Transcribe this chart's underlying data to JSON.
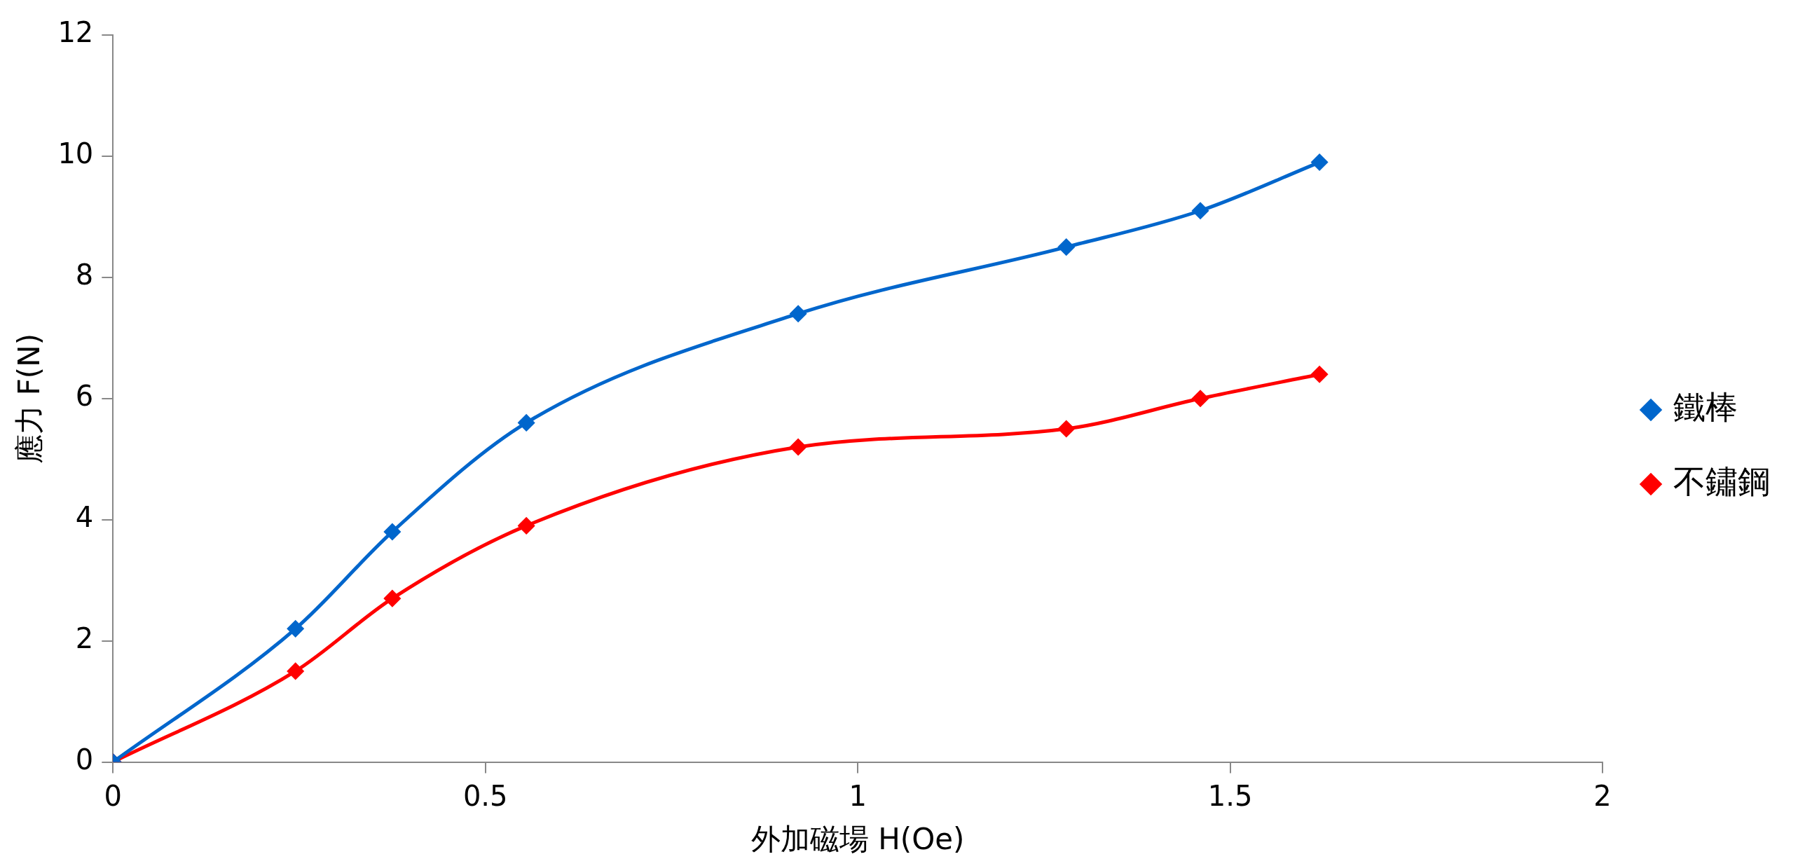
{
  "chart_data": {
    "type": "line",
    "xlabel": "外加磁場 H(Oe)",
    "ylabel": "應力 F(N)",
    "x": [
      0,
      0.245,
      0.375,
      0.555,
      0.92,
      1.28,
      1.46,
      1.62
    ],
    "series": [
      {
        "name": "鐵棒",
        "color": "#0066cc",
        "values": [
          0,
          2.2,
          3.8,
          5.6,
          7.4,
          8.5,
          9.1,
          9.9
        ]
      },
      {
        "name": "不鏽鋼",
        "color": "#ff0000",
        "values": [
          0,
          1.5,
          2.7,
          3.9,
          5.2,
          5.5,
          6.0,
          6.4
        ]
      }
    ],
    "xlim": [
      0,
      2
    ],
    "xticks": [
      0,
      0.5,
      1,
      1.5,
      2
    ],
    "ylim": [
      0,
      12
    ],
    "yticks": [
      0,
      2,
      4,
      6,
      8,
      10,
      12
    ],
    "grid": false,
    "legend": "right",
    "marker": "diamond",
    "line_style": "solid"
  }
}
